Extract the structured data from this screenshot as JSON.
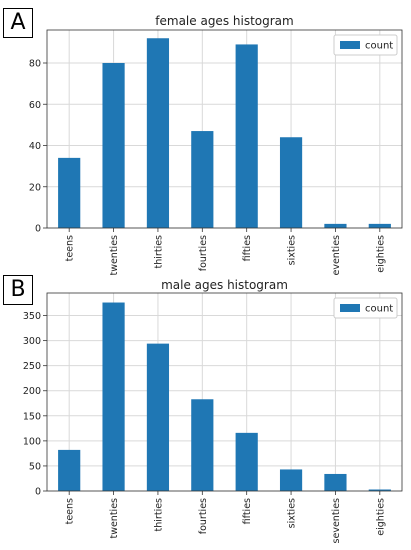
{
  "chart_data": [
    {
      "type": "bar",
      "panel_label": "A",
      "title": "female ages histogram",
      "categories": [
        "teens",
        "twenties",
        "thirties",
        "fourties",
        "fifties",
        "sixties",
        "seventies",
        "eighties"
      ],
      "series": [
        {
          "name": "count",
          "values": [
            34,
            80,
            92,
            47,
            89,
            44,
            2,
            2
          ]
        }
      ],
      "ylim": [
        0,
        96
      ],
      "yticks": [
        0,
        20,
        40,
        60,
        80
      ],
      "grid": true,
      "legend": "top-right",
      "color": "#1f77b4"
    },
    {
      "type": "bar",
      "panel_label": "B",
      "title": "male ages histogram",
      "categories": [
        "teens",
        "twenties",
        "thirties",
        "fourties",
        "fifties",
        "sixties",
        "seventies",
        "eighties"
      ],
      "series": [
        {
          "name": "count",
          "values": [
            82,
            376,
            294,
            183,
            116,
            43,
            34,
            3
          ]
        }
      ],
      "ylim": [
        0,
        395
      ],
      "yticks": [
        0,
        50,
        100,
        150,
        200,
        250,
        300,
        350
      ],
      "grid": true,
      "legend": "top-right",
      "color": "#1f77b4"
    }
  ]
}
